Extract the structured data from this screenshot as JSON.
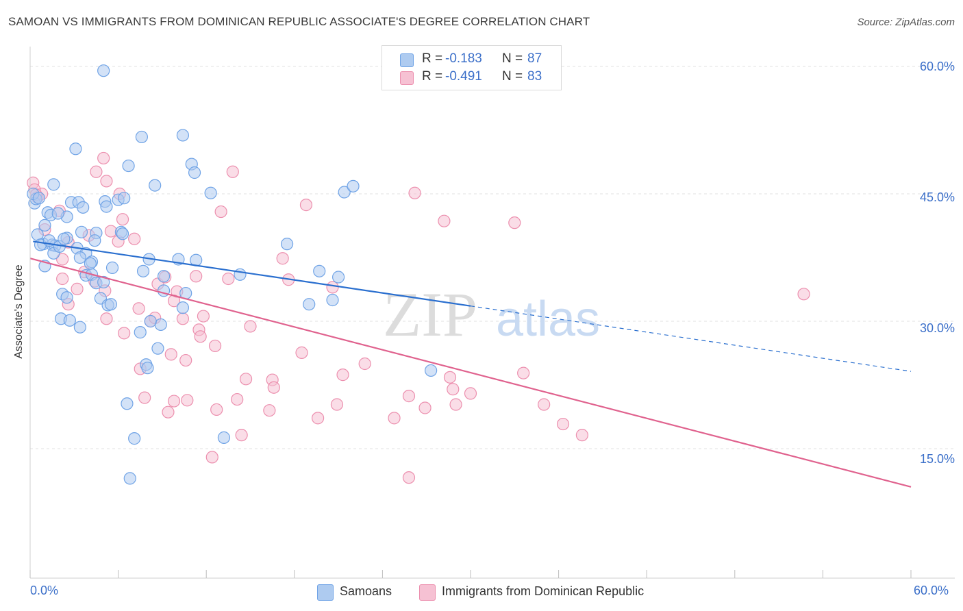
{
  "title": "SAMOAN VS IMMIGRANTS FROM DOMINICAN REPUBLIC ASSOCIATE'S DEGREE CORRELATION CHART",
  "source": "Source: ZipAtlas.com",
  "watermark": {
    "zip": "ZIP",
    "atlas": "atlas"
  },
  "colors": {
    "blue": "#6fa3e6",
    "blue_fill": "#aecbf0",
    "blue_line": "#2a6fcf",
    "pink": "#ec8fae",
    "pink_fill": "#f6c1d3",
    "pink_line": "#e0628e",
    "tick_text": "#3b6fc9",
    "grid": "#e2e2e2"
  },
  "legend": {
    "rows": [
      {
        "r_label": "R =",
        "r_value": "-0.183",
        "n_label": "N =",
        "n_value": "87",
        "color": "#aecbf0",
        "border": "#6fa3e6"
      },
      {
        "r_label": "R =",
        "r_value": "-0.491",
        "n_label": "N =",
        "n_value": "83",
        "color": "#f6c1d3",
        "border": "#ec8fae"
      }
    ],
    "bottom": [
      {
        "label": "Samoans",
        "color": "#aecbf0",
        "border": "#6fa3e6"
      },
      {
        "label": "Immigrants from Dominican Republic",
        "color": "#f6c1d3",
        "border": "#ec8fae"
      }
    ]
  },
  "chart_data": {
    "type": "scatter",
    "title": "SAMOAN VS IMMIGRANTS FROM DOMINICAN REPUBLIC ASSOCIATE'S DEGREE CORRELATION CHART",
    "xlabel": "",
    "ylabel": "Associate's Degree",
    "xlim": [
      0,
      60
    ],
    "ylim": [
      0,
      63
    ],
    "x_tick_labels": [
      "0.0%",
      "60.0%"
    ],
    "y_ticks": [
      15,
      30,
      45,
      60
    ],
    "y_tick_labels": [
      "15.0%",
      "30.0%",
      "45.0%",
      "60.0%"
    ],
    "grid": true,
    "legend_position": "top-center",
    "series": [
      {
        "name": "Samoans",
        "color": "#6fa3e6",
        "r": -0.183,
        "n": 87,
        "trend": {
          "x0": 0.2,
          "y0": 39.4,
          "x1": 30.0,
          "y1": 31.8,
          "dashed_to_x": 60,
          "dashed_to_y": 24.1
        },
        "points": [
          [
            5.0,
            59.5
          ],
          [
            1.2,
            42.8
          ],
          [
            1.6,
            46.1
          ],
          [
            3.1,
            50.3
          ],
          [
            7.6,
            51.7
          ],
          [
            10.4,
            51.9
          ],
          [
            6.7,
            48.3
          ],
          [
            8.5,
            46.0
          ],
          [
            11.0,
            48.5
          ],
          [
            11.2,
            47.5
          ],
          [
            12.3,
            45.1
          ],
          [
            21.4,
            45.2
          ],
          [
            22.0,
            45.9
          ],
          [
            0.3,
            43.9
          ],
          [
            0.4,
            44.4
          ],
          [
            1.4,
            42.5
          ],
          [
            2.5,
            42.3
          ],
          [
            2.8,
            44.0
          ],
          [
            3.3,
            44.0
          ],
          [
            3.6,
            43.4
          ],
          [
            5.1,
            44.1
          ],
          [
            5.2,
            43.5
          ],
          [
            6.0,
            44.3
          ],
          [
            6.4,
            44.5
          ],
          [
            1.0,
            41.3
          ],
          [
            0.5,
            40.2
          ],
          [
            0.9,
            39.1
          ],
          [
            1.5,
            39.0
          ],
          [
            1.7,
            38.9
          ],
          [
            1.6,
            38.0
          ],
          [
            2.5,
            39.8
          ],
          [
            3.5,
            40.5
          ],
          [
            4.5,
            40.4
          ],
          [
            6.2,
            40.5
          ],
          [
            3.2,
            38.6
          ],
          [
            3.8,
            38.0
          ],
          [
            3.4,
            37.5
          ],
          [
            4.2,
            37.0
          ],
          [
            4.4,
            39.5
          ],
          [
            0.7,
            39.0
          ],
          [
            1.3,
            39.5
          ],
          [
            2.0,
            38.8
          ],
          [
            2.3,
            39.7
          ],
          [
            8.1,
            37.3
          ],
          [
            10.1,
            37.3
          ],
          [
            11.3,
            37.2
          ],
          [
            17.5,
            39.1
          ],
          [
            1.0,
            36.5
          ],
          [
            5.6,
            36.3
          ],
          [
            7.7,
            35.9
          ],
          [
            9.1,
            35.3
          ],
          [
            14.3,
            35.5
          ],
          [
            19.7,
            35.9
          ],
          [
            3.8,
            35.4
          ],
          [
            4.2,
            35.5
          ],
          [
            2.2,
            33.2
          ],
          [
            4.5,
            34.5
          ],
          [
            9.1,
            33.6
          ],
          [
            10.6,
            33.3
          ],
          [
            2.5,
            32.8
          ],
          [
            4.8,
            32.7
          ],
          [
            5.3,
            31.9
          ],
          [
            5.5,
            32.0
          ],
          [
            10.4,
            31.6
          ],
          [
            19.0,
            32.0
          ],
          [
            20.6,
            32.5
          ],
          [
            2.1,
            30.3
          ],
          [
            2.7,
            30.1
          ],
          [
            8.9,
            29.6
          ],
          [
            3.4,
            29.3
          ],
          [
            7.5,
            28.7
          ],
          [
            8.7,
            26.8
          ],
          [
            7.9,
            24.9
          ],
          [
            8.0,
            24.5
          ],
          [
            27.3,
            24.2
          ],
          [
            6.6,
            20.3
          ],
          [
            7.1,
            16.2
          ],
          [
            13.2,
            16.3
          ],
          [
            6.8,
            11.5
          ],
          [
            0.2,
            45.0
          ],
          [
            0.6,
            44.5
          ],
          [
            4.1,
            36.8
          ],
          [
            5.0,
            34.6
          ],
          [
            21.0,
            35.2
          ],
          [
            8.2,
            30.0
          ],
          [
            6.3,
            40.3
          ],
          [
            1.9,
            42.7
          ]
        ]
      },
      {
        "name": "Immigrants from Dominican Republic",
        "color": "#ec8fae",
        "r": -0.491,
        "n": 83,
        "trend": {
          "x0": 0.0,
          "y0": 37.4,
          "x1": 60.0,
          "y1": 10.5
        },
        "points": [
          [
            0.2,
            46.3
          ],
          [
            0.5,
            44.6
          ],
          [
            0.8,
            45.0
          ],
          [
            0.3,
            45.5
          ],
          [
            0.4,
            44.9
          ],
          [
            4.5,
            47.6
          ],
          [
            5.0,
            49.2
          ],
          [
            5.2,
            46.5
          ],
          [
            13.8,
            47.6
          ],
          [
            18.8,
            43.7
          ],
          [
            26.2,
            45.1
          ],
          [
            28.2,
            41.8
          ],
          [
            33.0,
            41.6
          ],
          [
            13.0,
            42.9
          ],
          [
            2.0,
            43.0
          ],
          [
            6.1,
            45.0
          ],
          [
            6.3,
            42.0
          ],
          [
            1.0,
            40.8
          ],
          [
            2.6,
            39.3
          ],
          [
            4.0,
            40.1
          ],
          [
            5.5,
            40.6
          ],
          [
            7.1,
            39.7
          ],
          [
            17.2,
            37.4
          ],
          [
            6.0,
            39.4
          ],
          [
            2.2,
            37.3
          ],
          [
            3.7,
            35.8
          ],
          [
            4.4,
            34.7
          ],
          [
            8.7,
            34.4
          ],
          [
            9.2,
            35.2
          ],
          [
            11.3,
            35.3
          ],
          [
            13.5,
            35.0
          ],
          [
            17.6,
            34.9
          ],
          [
            20.6,
            34.0
          ],
          [
            2.2,
            35.0
          ],
          [
            3.2,
            33.8
          ],
          [
            5.1,
            33.6
          ],
          [
            10.0,
            33.5
          ],
          [
            9.8,
            32.4
          ],
          [
            7.4,
            31.5
          ],
          [
            10.4,
            30.3
          ],
          [
            5.2,
            30.3
          ],
          [
            8.2,
            30.0
          ],
          [
            8.5,
            30.4
          ],
          [
            11.8,
            30.6
          ],
          [
            15.0,
            29.4
          ],
          [
            11.5,
            29.0
          ],
          [
            11.6,
            28.2
          ],
          [
            6.4,
            28.6
          ],
          [
            12.6,
            27.1
          ],
          [
            9.6,
            26.1
          ],
          [
            10.6,
            25.4
          ],
          [
            18.5,
            26.3
          ],
          [
            21.3,
            23.7
          ],
          [
            22.8,
            25.0
          ],
          [
            7.5,
            24.4
          ],
          [
            14.7,
            23.2
          ],
          [
            16.5,
            23.1
          ],
          [
            16.6,
            22.2
          ],
          [
            28.6,
            23.4
          ],
          [
            30.0,
            21.5
          ],
          [
            33.6,
            23.9
          ],
          [
            28.8,
            22.0
          ],
          [
            7.8,
            21.0
          ],
          [
            9.8,
            20.6
          ],
          [
            10.7,
            20.7
          ],
          [
            14.1,
            20.8
          ],
          [
            20.9,
            20.2
          ],
          [
            25.8,
            21.2
          ],
          [
            26.9,
            19.8
          ],
          [
            29.0,
            20.2
          ],
          [
            35.0,
            20.2
          ],
          [
            9.4,
            19.3
          ],
          [
            12.7,
            19.6
          ],
          [
            16.3,
            19.5
          ],
          [
            19.6,
            18.6
          ],
          [
            24.8,
            18.6
          ],
          [
            36.3,
            17.9
          ],
          [
            14.4,
            16.6
          ],
          [
            37.6,
            16.6
          ],
          [
            12.4,
            14.0
          ],
          [
            25.8,
            11.6
          ],
          [
            52.7,
            33.2
          ],
          [
            2.6,
            32.0
          ]
        ]
      }
    ]
  }
}
